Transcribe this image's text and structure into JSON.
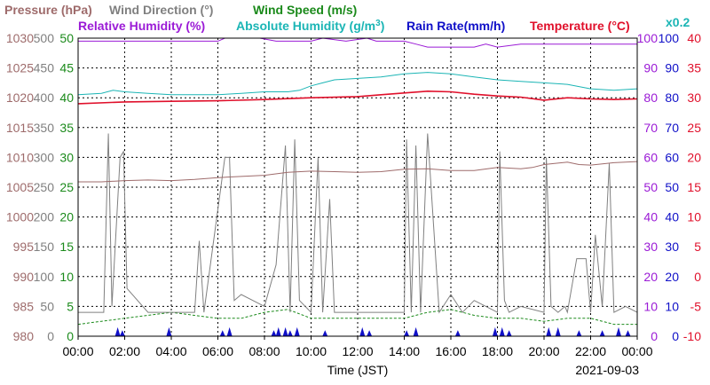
{
  "chart_data": {
    "type": "line",
    "legend": {
      "row1": [
        {
          "key": "pressure",
          "label": "Pressure (hPa)",
          "color": "#9e6b6b"
        },
        {
          "key": "wind_dir",
          "label": "Wind Direction (°)",
          "color": "#808080"
        },
        {
          "key": "wind_speed",
          "label": "Wind Speed (m/s)",
          "color": "#1b8a1b"
        }
      ],
      "row2": [
        {
          "key": "rh",
          "label": "Relative Humidity (%)",
          "color": "#9b1bd6"
        },
        {
          "key": "ah",
          "label": "Absolute Humidity (g/m",
          "sup": "3",
          "tail": ")",
          "color": "#1bb5b5"
        },
        {
          "key": "rain",
          "label": "Rain Rate(mm/h)",
          "color": "#1010c8"
        },
        {
          "key": "temp",
          "label": "Temperature (°C)",
          "color": "#e0102b"
        }
      ],
      "factor": {
        "label": "x0.2",
        "color": "#1bb5b5"
      }
    },
    "xlabel": "Time (JST)",
    "date": "2021-09-03",
    "x_ticks": [
      "00:00",
      "02:00",
      "04:00",
      "06:00",
      "08:00",
      "10:00",
      "12:00",
      "14:00",
      "16:00",
      "18:00",
      "20:00",
      "22:00",
      "00:00"
    ],
    "axes_left": [
      {
        "key": "pressure",
        "color": "#9e6b6b",
        "ticks": [
          "1030",
          "1025",
          "1020",
          "1015",
          "1010",
          "1005",
          "1000",
          "995",
          "990",
          "985",
          "980"
        ]
      },
      {
        "key": "wind_dir",
        "color": "#808080",
        "ticks": [
          "500",
          "450",
          "400",
          "350",
          "300",
          "250",
          "200",
          "150",
          "100",
          "50",
          "0"
        ]
      },
      {
        "key": "wind_speed",
        "color": "#1b8a1b",
        "ticks": [
          "50",
          "45",
          "40",
          "35",
          "30",
          "25",
          "20",
          "15",
          "10",
          "5",
          "0"
        ]
      }
    ],
    "axes_right": [
      {
        "key": "rh",
        "color": "#9b1bd6",
        "ticks": [
          "100",
          "90",
          "80",
          "70",
          "60",
          "50",
          "40",
          "30",
          "20",
          "10",
          "0"
        ]
      },
      {
        "key": "rain",
        "color": "#1010c8",
        "ticks": [
          "100",
          "90",
          "80",
          "70",
          "60",
          "50",
          "40",
          "30",
          "20",
          "10",
          "0"
        ]
      },
      {
        "key": "temp",
        "color": "#e0102b",
        "ticks": [
          "40",
          "35",
          "30",
          "25",
          "20",
          "15",
          "10",
          "5",
          "0",
          "-5",
          "-10"
        ]
      }
    ],
    "x_range_hours": [
      0,
      24
    ],
    "grid": true,
    "series": [
      {
        "key": "rh",
        "name": "Relative Humidity (%)",
        "color": "#9b1bd6",
        "scale": [
          0,
          100
        ],
        "x": [
          0,
          2.5,
          6,
          6.3,
          7.8,
          8.5,
          9.3,
          10,
          10.5,
          11.5,
          12.4,
          12.8,
          14,
          14.5,
          15,
          17,
          17.5,
          18,
          19,
          24
        ],
        "y": [
          99,
          99,
          99,
          100,
          100,
          99,
          99,
          99,
          100,
          99,
          100,
          99,
          99,
          98,
          97,
          97,
          98,
          97,
          98,
          98
        ]
      },
      {
        "key": "ah",
        "name": "Absolute Humidity (g/m3) x0.2",
        "color": "#1bb5b5",
        "scale": [
          0,
          100
        ],
        "x": [
          0,
          1,
          1.5,
          2,
          3,
          4,
          5,
          6,
          7,
          8,
          9,
          9.5,
          10,
          10.5,
          11,
          12,
          13,
          14,
          15,
          16,
          17,
          18,
          19,
          20,
          21,
          22,
          23,
          24
        ],
        "y": [
          81,
          81.5,
          82.5,
          82,
          81.5,
          81,
          81,
          81,
          81.5,
          82,
          82,
          82.5,
          84,
          85,
          86,
          86.5,
          87,
          88,
          88.5,
          88,
          87,
          86,
          85.5,
          85,
          84.5,
          83,
          82.5,
          83
        ]
      },
      {
        "key": "temp",
        "name": "Temperature (°C)",
        "color": "#e0102b",
        "scale": [
          -10,
          40
        ],
        "x": [
          0,
          2,
          4,
          6,
          8,
          10,
          12,
          13,
          14,
          15,
          16,
          17,
          18,
          19,
          20,
          21,
          22,
          23,
          24
        ],
        "y": [
          29,
          29.3,
          29.4,
          29.5,
          29.7,
          30,
          30.2,
          30.5,
          30.8,
          31.1,
          31,
          30.6,
          30.3,
          30.1,
          29.6,
          30,
          29.8,
          29.7,
          29.8
        ]
      },
      {
        "key": "pressure",
        "name": "Pressure (hPa)",
        "color": "#9e6b6b",
        "scale": [
          980,
          1030
        ],
        "x": [
          0,
          1,
          2,
          3,
          4,
          5,
          6,
          7,
          8,
          9,
          10,
          11,
          12,
          13,
          14,
          15,
          16,
          17,
          18,
          19,
          19.5,
          20,
          20.5,
          21,
          21.5,
          22,
          23,
          24
        ],
        "y": [
          1005.9,
          1005.9,
          1006.1,
          1006.2,
          1006.1,
          1006.3,
          1006.6,
          1006.8,
          1007,
          1007.5,
          1007.7,
          1007.6,
          1007.5,
          1007.6,
          1008,
          1008.1,
          1007.8,
          1007.8,
          1008.3,
          1008.1,
          1008.3,
          1008.8,
          1009,
          1009.2,
          1008.8,
          1008.7,
          1009.1,
          1009.3
        ]
      },
      {
        "key": "wind_dir",
        "name": "Wind Direction (°)",
        "color": "#808080",
        "scale": [
          0,
          500
        ],
        "x": [
          0,
          1.1,
          1.3,
          1.45,
          1.8,
          1.95,
          2.1,
          3,
          5,
          5.2,
          5.4,
          6.3,
          6.5,
          6.7,
          7,
          8,
          8.5,
          8.9,
          9.1,
          9.3,
          9.5,
          10,
          10.3,
          10.5,
          10.8,
          11,
          11.2,
          12,
          14,
          14.1,
          14.3,
          14.5,
          14.7,
          15,
          15.5,
          16,
          16.5,
          17,
          18,
          18.1,
          18.3,
          18.5,
          19,
          20,
          20.1,
          20.3,
          20.6,
          20.9,
          21,
          21.4,
          21.8,
          22,
          22.2,
          22.5,
          22.8,
          23,
          23.5,
          24
        ],
        "y": [
          40,
          40,
          340,
          50,
          300,
          310,
          80,
          40,
          40,
          160,
          40,
          300,
          300,
          60,
          70,
          50,
          120,
          320,
          40,
          330,
          60,
          40,
          300,
          40,
          230,
          40,
          40,
          40,
          40,
          330,
          40,
          320,
          40,
          340,
          40,
          70,
          40,
          60,
          40,
          310,
          60,
          40,
          50,
          40,
          300,
          50,
          40,
          50,
          40,
          130,
          130,
          40,
          170,
          50,
          290,
          40,
          50,
          40
        ]
      },
      {
        "key": "wind_speed",
        "name": "Wind Speed (m/s)",
        "color": "#1b8a1b",
        "scale": [
          0,
          50
        ],
        "x": [
          0,
          1,
          2,
          3,
          4,
          5,
          6,
          7,
          8,
          9,
          10,
          11,
          12,
          13,
          14,
          15,
          16,
          17,
          18,
          19,
          20,
          21,
          22,
          23,
          24
        ],
        "y": [
          2,
          2.5,
          3,
          3.5,
          4,
          3.5,
          3,
          3,
          4,
          4.5,
          3,
          3,
          3,
          3,
          3,
          4,
          4.5,
          3.5,
          3,
          3,
          2.5,
          3,
          3,
          2,
          2
        ]
      },
      {
        "key": "rain",
        "name": "Rain Rate(mm/h)",
        "color": "#1010c8",
        "scale": [
          0,
          100
        ],
        "x": [
          1.7,
          1.9,
          3.9,
          6.2,
          6.5,
          8.4,
          8.6,
          8.9,
          9.1,
          9.4,
          10.6,
          12.2,
          12.5,
          14.1,
          14.5,
          16.3,
          17.9,
          18.2,
          18.5,
          20.2,
          20.6,
          21.5,
          22.5,
          23.2,
          23.6
        ],
        "y": [
          3,
          2,
          3,
          2,
          3,
          2,
          3,
          3,
          2,
          3,
          2,
          3,
          2,
          2,
          3,
          2,
          3,
          3,
          2,
          3,
          3,
          2,
          2,
          3,
          2
        ]
      }
    ]
  }
}
